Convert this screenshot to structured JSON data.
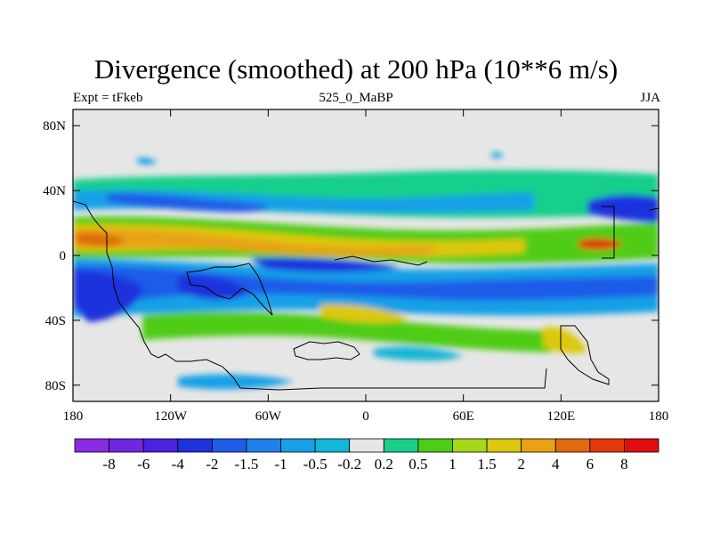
{
  "chart_data": {
    "type": "heatmap",
    "title": "Divergence (smoothed) at 200 hPa (10**6 m/s)",
    "left_label": "Expt = tFkeb",
    "center_label": "525_0_MaBP",
    "right_label": "JJA",
    "x_axis": {
      "range": [
        -180,
        180
      ],
      "ticks": [
        -180,
        -120,
        -60,
        0,
        60,
        120,
        180
      ],
      "tick_labels": [
        "180",
        "120W",
        "60W",
        "0",
        "60E",
        "120E",
        "180"
      ]
    },
    "y_axis": {
      "range": [
        -90,
        90
      ],
      "ticks": [
        80,
        40,
        0,
        -40,
        -80
      ],
      "tick_labels": [
        "80N",
        "40N",
        "0",
        "40S",
        "80S"
      ]
    },
    "colorbar": {
      "labels": [
        "-8",
        "-6",
        "-4",
        "-2",
        "-1.5",
        "-1",
        "-0.5",
        "-0.2",
        "0.2",
        "0.5",
        "1",
        "1.5",
        "2",
        "4",
        "6",
        "8"
      ],
      "colors": [
        "#8a2be2",
        "#7126e4",
        "#4a22e0",
        "#1f32dd",
        "#1f5ce8",
        "#2080ea",
        "#17a0e6",
        "#12b6d6",
        "#e6e6e6",
        "#18cf8c",
        "#4fcc16",
        "#a6d81a",
        "#dcc80e",
        "#e8a214",
        "#e06a10",
        "#e2380c",
        "#e00e0e"
      ]
    },
    "background_color": "#e6e6e6"
  }
}
